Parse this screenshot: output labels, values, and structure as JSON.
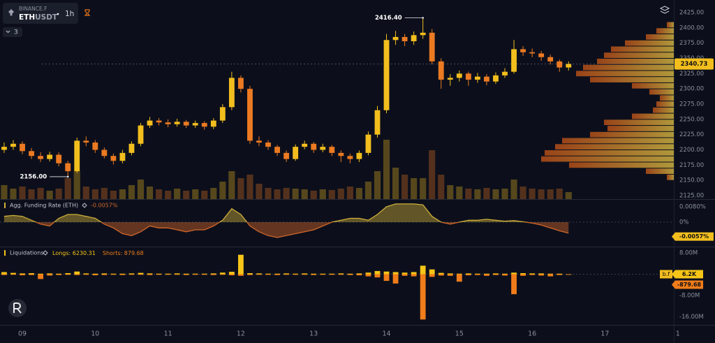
{
  "header": {
    "exchange": "BINANCE.F",
    "base": "ETH",
    "quote": "USDT",
    "interval": "1h",
    "indicators": "3"
  },
  "chart_data": [
    {
      "type": "candlestick",
      "x": [
        8.75,
        8.875,
        9,
        9.125,
        9.25,
        9.375,
        9.5,
        9.625,
        9.75,
        9.875,
        10,
        10.125,
        10.25,
        10.375,
        10.5,
        10.625,
        10.75,
        10.875,
        11,
        11.125,
        11.25,
        11.375,
        11.5,
        11.625,
        11.75,
        11.875,
        12,
        12.125,
        12.25,
        12.375,
        12.5,
        12.625,
        12.75,
        12.875,
        13,
        13.125,
        13.25,
        13.375,
        13.5,
        13.625,
        13.75,
        13.875,
        14,
        14.125,
        14.25,
        14.375,
        14.5,
        14.625,
        14.75,
        14.875,
        15,
        15.125,
        15.25,
        15.375,
        15.5,
        15.625,
        15.75,
        15.875,
        16,
        16.125,
        16.25,
        16.375,
        16.5
      ],
      "open": [
        2200,
        2205,
        2210,
        2198,
        2190,
        2185,
        2192,
        2178,
        2165,
        2215,
        2212,
        2200,
        2190,
        2182,
        2195,
        2210,
        2240,
        2248,
        2245,
        2242,
        2246,
        2240,
        2244,
        2238,
        2248,
        2270,
        2318,
        2300,
        2215,
        2212,
        2205,
        2195,
        2185,
        2205,
        2210,
        2200,
        2205,
        2195,
        2190,
        2185,
        2195,
        2225,
        2265,
        2380,
        2385,
        2378,
        2388,
        2392,
        2345,
        2315,
        2318,
        2325,
        2315,
        2320,
        2312,
        2322,
        2328,
        2365,
        2360,
        2358,
        2352,
        2345,
        2335
      ],
      "high": [
        2212,
        2216,
        2214,
        2203,
        2196,
        2197,
        2196,
        2182,
        2220,
        2222,
        2216,
        2204,
        2194,
        2200,
        2214,
        2244,
        2254,
        2252,
        2250,
        2251,
        2249,
        2248,
        2247,
        2252,
        2275,
        2328,
        2322,
        2305,
        2222,
        2216,
        2208,
        2199,
        2209,
        2215,
        2213,
        2210,
        2208,
        2199,
        2194,
        2199,
        2230,
        2272,
        2390,
        2395,
        2390,
        2394,
        2416.4,
        2398,
        2350,
        2324,
        2330,
        2328,
        2326,
        2324,
        2327,
        2334,
        2380,
        2370,
        2366,
        2362,
        2356,
        2348,
        2345
      ],
      "low": [
        2195,
        2200,
        2193,
        2185,
        2180,
        2181,
        2173,
        2156,
        2162,
        2206,
        2195,
        2186,
        2176,
        2178,
        2191,
        2206,
        2236,
        2240,
        2237,
        2238,
        2236,
        2236,
        2233,
        2234,
        2244,
        2265,
        2294,
        2210,
        2206,
        2200,
        2190,
        2180,
        2182,
        2201,
        2195,
        2196,
        2190,
        2180,
        2178,
        2180,
        2191,
        2220,
        2260,
        2372,
        2370,
        2372,
        2382,
        2340,
        2300,
        2305,
        2312,
        2305,
        2310,
        2306,
        2308,
        2318,
        2325,
        2354,
        2352,
        2346,
        2340,
        2328,
        2330
      ],
      "close": [
        2205,
        2210,
        2198,
        2190,
        2185,
        2192,
        2178,
        2165,
        2215,
        2212,
        2200,
        2190,
        2182,
        2195,
        2210,
        2240,
        2248,
        2245,
        2242,
        2246,
        2240,
        2244,
        2238,
        2248,
        2270,
        2318,
        2300,
        2215,
        2212,
        2205,
        2195,
        2185,
        2205,
        2210,
        2200,
        2205,
        2195,
        2190,
        2185,
        2195,
        2225,
        2265,
        2380,
        2385,
        2378,
        2388,
        2392,
        2345,
        2315,
        2318,
        2325,
        2315,
        2320,
        2312,
        2322,
        2328,
        2365,
        2360,
        2358,
        2352,
        2345,
        2335,
        2340.73
      ],
      "volume": [
        20,
        15,
        18,
        14,
        16,
        12,
        15,
        30,
        40,
        18,
        14,
        16,
        12,
        14,
        20,
        28,
        18,
        14,
        12,
        15,
        12,
        14,
        12,
        16,
        25,
        40,
        30,
        35,
        22,
        16,
        14,
        16,
        15,
        14,
        12,
        14,
        13,
        15,
        18,
        16,
        25,
        40,
        85,
        45,
        35,
        30,
        30,
        70,
        35,
        20,
        18,
        15,
        14,
        16,
        14,
        15,
        28,
        18,
        15,
        14,
        14,
        15,
        10
      ],
      "up_color": "#f2be1e",
      "down_color": "#ec7a22",
      "volume_profile": {
        "bins": [
          2150,
          2160,
          2170,
          2180,
          2190,
          2200,
          2210,
          2220,
          2230,
          2240,
          2250,
          2260,
          2270,
          2280,
          2290,
          2300,
          2310,
          2320,
          2330,
          2340,
          2350,
          2360,
          2370,
          2380,
          2390,
          2400,
          2410
        ],
        "values": [
          10,
          40,
          150,
          190,
          185,
          170,
          160,
          120,
          95,
          100,
          60,
          30,
          25,
          20,
          35,
          60,
          120,
          140,
          130,
          110,
          100,
          90,
          70,
          40,
          25,
          10
        ],
        "colors": [
          "#b24c18",
          "#cdb040"
        ]
      },
      "annotations": [
        {
          "value": 2416.4,
          "label": "2416.40",
          "x": 14.5
        },
        {
          "value": 2156,
          "label": "2156.00",
          "x": 9.625
        }
      ],
      "xlim": [
        8.693,
        17.945
      ],
      "xticks": [
        {
          "value": 9,
          "label": "09"
        },
        10,
        11,
        12,
        13,
        14,
        15,
        16,
        17,
        {
          "value": 18,
          "label": "1"
        }
      ],
      "ylim": [
        2119.3,
        2445.6
      ],
      "yticks": [
        {
          "value": 2125,
          "label": "2125.00"
        },
        {
          "value": 2150,
          "label": "2150.00"
        },
        {
          "value": 2175,
          "label": "2175.00"
        },
        {
          "value": 2200,
          "label": "2200.00"
        },
        {
          "value": 2225,
          "label": "2225.00"
        },
        {
          "value": 2250,
          "label": "2250.00"
        },
        {
          "value": 2275,
          "label": "2275.00"
        },
        {
          "value": 2300,
          "label": "2300.00"
        },
        {
          "value": 2325,
          "label": "2325.00"
        },
        {
          "value": 2350,
          "label": "2350.00"
        },
        {
          "value": 2375,
          "label": "2375.00"
        },
        {
          "value": 2400,
          "label": "2400.00"
        },
        {
          "value": 2425,
          "label": "2425.00"
        }
      ]
    },
    {
      "type": "area",
      "title": "Agg. Funding Rate (ETH)",
      "legend_value": "-0.0057%",
      "last_label": "-0.0057%",
      "x": [
        8.75,
        8.875,
        9,
        9.125,
        9.25,
        9.375,
        9.5,
        9.625,
        9.75,
        9.875,
        10,
        10.125,
        10.25,
        10.375,
        10.5,
        10.625,
        10.75,
        10.875,
        11,
        11.125,
        11.25,
        11.375,
        11.5,
        11.625,
        11.75,
        11.875,
        12,
        12.125,
        12.25,
        12.375,
        12.5,
        12.625,
        12.75,
        12.875,
        13,
        13.125,
        13.25,
        13.375,
        13.5,
        13.625,
        13.75,
        13.875,
        14,
        14.125,
        14.25,
        14.375,
        14.5,
        14.625,
        14.75,
        14.875,
        15,
        15.125,
        15.25,
        15.375,
        15.5,
        15.625,
        15.75,
        15.875,
        16,
        16.125,
        16.25,
        16.375,
        16.5
      ],
      "values": [
        0.003,
        0.0035,
        0.003,
        0.001,
        -0.001,
        -0.002,
        0.002,
        0.004,
        0.004,
        0.003,
        0.002,
        -0.001,
        -0.003,
        -0.006,
        -0.007,
        -0.005,
        -0.002,
        -0.003,
        -0.003,
        -0.004,
        -0.005,
        -0.004,
        -0.004,
        -0.002,
        0.001,
        0.007,
        0.004,
        -0.002,
        -0.005,
        -0.007,
        -0.008,
        -0.007,
        -0.006,
        -0.005,
        -0.004,
        -0.002,
        0.0,
        0.001,
        0.002,
        0.002,
        0.001,
        0.004,
        0.008,
        0.0095,
        0.0095,
        0.0095,
        0.009,
        0.003,
        0.0,
        -0.001,
        0.0,
        0.001,
        0.001,
        0.0015,
        0.001,
        0.0005,
        0.0008,
        0.0002,
        -0.0005,
        -0.0015,
        -0.003,
        -0.0045,
        -0.0057
      ],
      "positive_color": "#cdae3a",
      "negative_color": "#d0662a",
      "ylim": [
        -0.01236,
        0.01127
      ],
      "yticks": [
        {
          "value": 0.008,
          "label": "0.0080%"
        },
        {
          "value": 0,
          "label": "0%"
        }
      ]
    },
    {
      "type": "bar",
      "title": "Liquidations",
      "source_tag": "b.f",
      "x": [
        8.75,
        8.875,
        9,
        9.125,
        9.25,
        9.375,
        9.5,
        9.625,
        9.75,
        9.875,
        10,
        10.125,
        10.25,
        10.375,
        10.5,
        10.625,
        10.75,
        10.875,
        11,
        11.125,
        11.25,
        11.375,
        11.5,
        11.625,
        11.75,
        11.875,
        12,
        12.125,
        12.25,
        12.375,
        12.5,
        12.625,
        12.75,
        12.875,
        13,
        13.125,
        13.25,
        13.375,
        13.5,
        13.625,
        13.75,
        13.875,
        14,
        14.125,
        14.25,
        14.375,
        14.5,
        14.625,
        14.75,
        14.875,
        15,
        15.125,
        15.25,
        15.375,
        15.5,
        15.625,
        15.75,
        15.875,
        16,
        16.125,
        16.25,
        16.375,
        16.5
      ],
      "series": [
        {
          "name": "Longs:",
          "legend_value": "6230.31",
          "tag": "6.2K",
          "color": "#f5c518",
          "values": [
            0.8,
            0.5,
            0.3,
            0.4,
            0.2,
            0.3,
            0.2,
            0.4,
            1.0,
            0.3,
            0.2,
            0.3,
            0.2,
            0.2,
            0.3,
            0.5,
            0.3,
            0.2,
            0.2,
            0.3,
            0.2,
            0.2,
            0.2,
            0.3,
            0.6,
            0.9,
            7.3,
            0.4,
            0.3,
            0.2,
            0.2,
            0.3,
            0.2,
            0.3,
            0.2,
            0.2,
            0.2,
            0.3,
            0.2,
            0.3,
            0.6,
            1.2,
            1.0,
            0.8,
            0.6,
            0.8,
            3.2,
            1.8,
            0.5,
            0.3,
            0.2,
            0.3,
            0.2,
            0.2,
            0.3,
            0.2,
            0.6,
            0.4,
            0.3,
            0.3,
            0.2,
            0.2,
            0.0062
          ]
        },
        {
          "name": "Shorts:",
          "legend_value": "879.68",
          "tag": "-879.68",
          "color": "#f07c1a",
          "values": [
            -0.3,
            -0.2,
            -0.4,
            -0.3,
            -1.8,
            -0.5,
            -0.3,
            -0.2,
            -0.3,
            -0.2,
            -0.4,
            -0.3,
            -0.2,
            -0.3,
            -0.2,
            -0.2,
            -0.3,
            -0.2,
            -0.2,
            -0.2,
            -0.3,
            -0.2,
            -0.2,
            -0.3,
            -0.2,
            -0.4,
            -0.6,
            -0.3,
            -0.2,
            -0.2,
            -0.3,
            -0.2,
            -0.2,
            -0.2,
            -0.3,
            -0.2,
            -0.2,
            -0.2,
            -0.3,
            -0.4,
            -0.8,
            -1.2,
            -2.5,
            -3.5,
            -0.6,
            -0.8,
            -17.0,
            -1.0,
            -0.5,
            -0.6,
            -2.8,
            -0.4,
            -0.3,
            -0.6,
            -0.3,
            -0.5,
            -7.5,
            -0.6,
            -0.3,
            -0.5,
            -0.8,
            -0.3,
            -0.00087968
          ]
        }
      ],
      "ylim": [
        -19.0,
        10.1
      ],
      "yticks": [
        {
          "value": 8,
          "label": "8.00M"
        },
        {
          "value": -8,
          "label": "-8.00M"
        },
        {
          "value": -16,
          "label": "-16.00M"
        }
      ]
    }
  ]
}
